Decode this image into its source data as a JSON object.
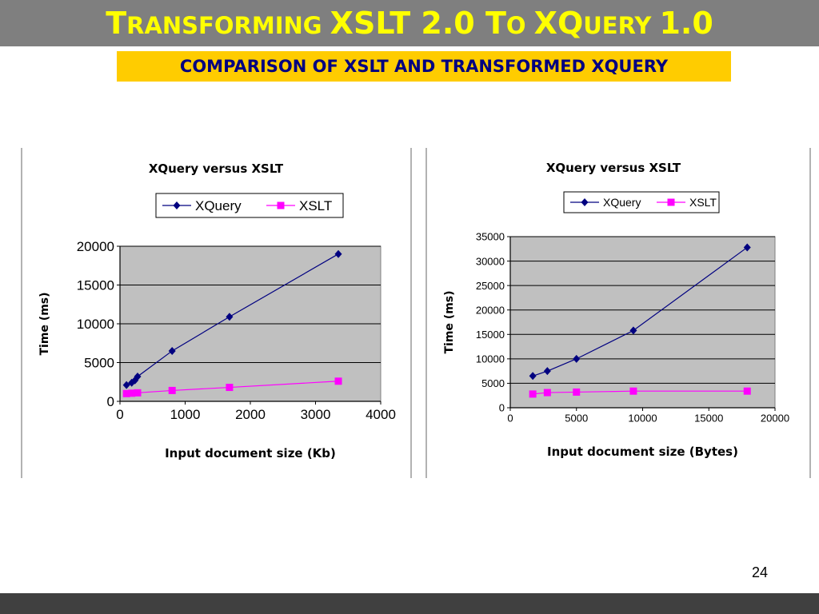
{
  "slide": {
    "title_parts": [
      {
        "text": "T",
        "cls": "big"
      },
      {
        "text": "RANSFORMING ",
        "cls": "sc"
      },
      {
        "text": "XSLT 2.0 T",
        "cls": "big"
      },
      {
        "text": "O ",
        "cls": "sc"
      },
      {
        "text": "XQ",
        "cls": "big"
      },
      {
        "text": "UERY ",
        "cls": "sc"
      },
      {
        "text": "1.0",
        "cls": "big"
      }
    ],
    "subtitle": "COMPARISON OF XSLT AND TRANSFORMED XQUERY",
    "page_number": "24",
    "colors": {
      "title_bar": "#7f7f7f",
      "title_text": "#ffff00",
      "subtitle_bg": "#ffcc00",
      "subtitle_text": "#000080",
      "footer": "#404040",
      "plot_bg": "#c0c0c0",
      "xquery_series": "#000080",
      "xslt_series": "#ff00ff"
    }
  },
  "chart_data": [
    {
      "type": "line",
      "title": "XQuery versus XSLT",
      "xlabel": "Input document size (Kb)",
      "ylabel": "Time (ms)",
      "xlim": [
        0,
        4000
      ],
      "ylim": [
        0,
        20000
      ],
      "x_ticks": [
        0,
        1000,
        2000,
        3000,
        4000
      ],
      "y_ticks": [
        0,
        5000,
        10000,
        15000,
        20000
      ],
      "grid": "horizontal",
      "legend": "top",
      "series": [
        {
          "name": "XQuery",
          "marker": "diamond",
          "color": "#000080",
          "points": [
            [
              100,
              2100
            ],
            [
              180,
              2400
            ],
            [
              230,
              2700
            ],
            [
              270,
              3200
            ],
            [
              800,
              6500
            ],
            [
              1680,
              10900
            ],
            [
              3350,
              19000
            ]
          ]
        },
        {
          "name": "XSLT",
          "marker": "square",
          "color": "#ff00ff",
          "points": [
            [
              100,
              1000
            ],
            [
              180,
              1050
            ],
            [
              270,
              1100
            ],
            [
              800,
              1400
            ],
            [
              1680,
              1800
            ],
            [
              3350,
              2600
            ]
          ]
        }
      ]
    },
    {
      "type": "line",
      "title": "XQuery versus XSLT",
      "xlabel": "Input document size (Bytes)",
      "ylabel": "Time (ms)",
      "xlim": [
        0,
        20000
      ],
      "ylim": [
        0,
        35000
      ],
      "x_ticks": [
        0,
        5000,
        10000,
        15000,
        20000
      ],
      "y_ticks": [
        0,
        5000,
        10000,
        15000,
        20000,
        25000,
        30000,
        35000
      ],
      "grid": "horizontal",
      "legend": "top",
      "series": [
        {
          "name": "XQuery",
          "marker": "diamond",
          "color": "#000080",
          "points": [
            [
              1700,
              6500
            ],
            [
              2800,
              7500
            ],
            [
              5000,
              10000
            ],
            [
              9300,
              15800
            ],
            [
              17900,
              32800
            ]
          ]
        },
        {
          "name": "XSLT",
          "marker": "square",
          "color": "#ff00ff",
          "points": [
            [
              1700,
              2800
            ],
            [
              2800,
              3100
            ],
            [
              5000,
              3200
            ],
            [
              9300,
              3400
            ],
            [
              17900,
              3400
            ]
          ]
        }
      ]
    }
  ]
}
